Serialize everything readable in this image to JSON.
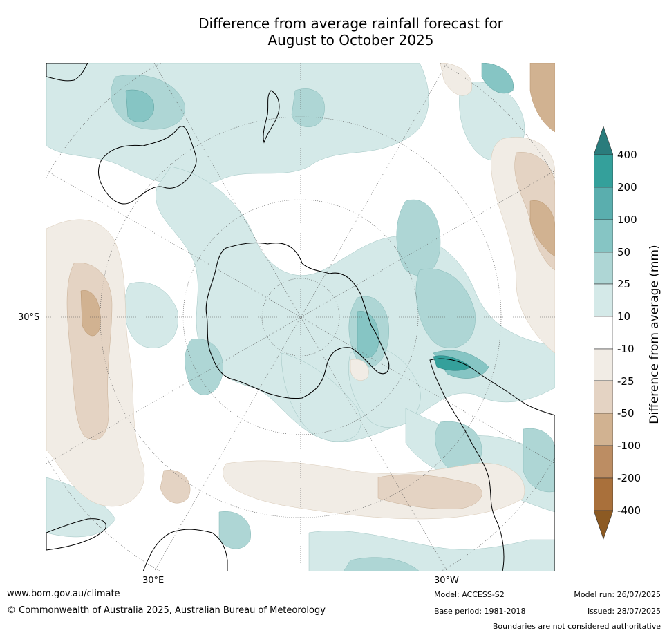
{
  "title_line1": "Difference from average rainfall forecast for",
  "title_line2": "August to October 2025",
  "map": {
    "projection": "south-polar-stereographic",
    "lat_label": "30°S",
    "lon_labels": [
      "30°E",
      "30°W"
    ]
  },
  "legend": {
    "title": "Difference from average (mm)",
    "ticks": [
      "400",
      "200",
      "100",
      "50",
      "25",
      "10",
      "-10",
      "-25",
      "-50",
      "-100",
      "-200",
      "-400"
    ],
    "colors_top_to_bottom": [
      "#2a7c7c",
      "#34a09b",
      "#5aaeae",
      "#86c5c4",
      "#aed6d5",
      "#d4e9e8",
      "#ffffff",
      "#f1ece5",
      "#e4d3c3",
      "#d1b291",
      "#bc8d63",
      "#a9703b",
      "#8c5a23"
    ]
  },
  "footer": {
    "website": "www.bom.gov.au/climate",
    "copyright": "© Commonwealth of Australia 2025, Australian Bureau of Meteorology",
    "model": "Model: ACCESS-S2",
    "base_period": "Base period: 1981-2018",
    "model_run": "Model run: 26/07/2025",
    "issued": "Issued: 28/07/2025",
    "disclaimer": "Boundaries are not considered authoritative"
  }
}
